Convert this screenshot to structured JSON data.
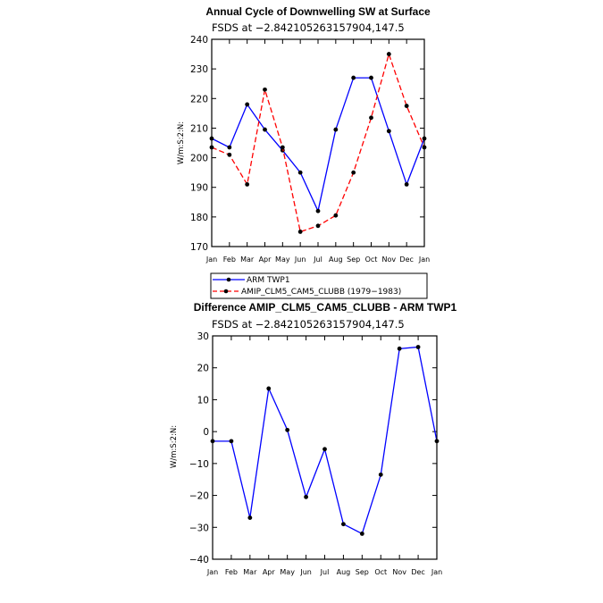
{
  "chart_data": [
    {
      "type": "line",
      "title": "Annual Cycle of Downwelling SW at Surface",
      "subtitle": "FSDS at −2.842105263157904,147.5",
      "ylabel": "W/m:S:2:N:",
      "xlabel": "",
      "categories": [
        "Jan",
        "Feb",
        "Mar",
        "Apr",
        "May",
        "Jun",
        "Jul",
        "Aug",
        "Sep",
        "Oct",
        "Nov",
        "Dec",
        "Jan"
      ],
      "ylim": [
        170,
        240
      ],
      "yticks": [
        170,
        180,
        190,
        200,
        210,
        220,
        230,
        240
      ],
      "grid": false,
      "legend": "below",
      "series": [
        {
          "name": "ARM TWP1",
          "color": "#0000ff",
          "dash": "solid",
          "values": [
            206.5,
            203.5,
            218,
            209.5,
            202.5,
            195,
            182,
            209.5,
            227,
            227,
            209,
            191,
            206.5
          ]
        },
        {
          "name": "AMIP_CLM5_CAM5_CLUBB (1979−1983)",
          "color": "#ff0000",
          "dash": "dashed",
          "values": [
            203.5,
            201,
            191,
            223,
            203.5,
            175,
            177,
            180.5,
            195,
            213.5,
            235,
            217.5,
            203.5
          ]
        }
      ]
    },
    {
      "type": "line",
      "title": "Difference AMIP_CLM5_CAM5_CLUBB - ARM TWP1",
      "subtitle": "FSDS at −2.842105263157904,147.5",
      "ylabel": "W/m:S:2:N:",
      "xlabel": "",
      "categories": [
        "Jan",
        "Feb",
        "Mar",
        "Apr",
        "May",
        "Jun",
        "Jul",
        "Aug",
        "Sep",
        "Oct",
        "Nov",
        "Dec",
        "Jan"
      ],
      "ylim": [
        -40,
        30
      ],
      "yticks": [
        -40,
        -30,
        -20,
        -10,
        0,
        10,
        20,
        30
      ],
      "grid": false,
      "series": [
        {
          "color": "#0000ff",
          "dash": "solid",
          "values": [
            -3,
            -3,
            -27,
            13.5,
            0.5,
            -20.5,
            -5.5,
            -29,
            -32,
            -13.5,
            26,
            26.5,
            -3
          ]
        }
      ]
    }
  ]
}
